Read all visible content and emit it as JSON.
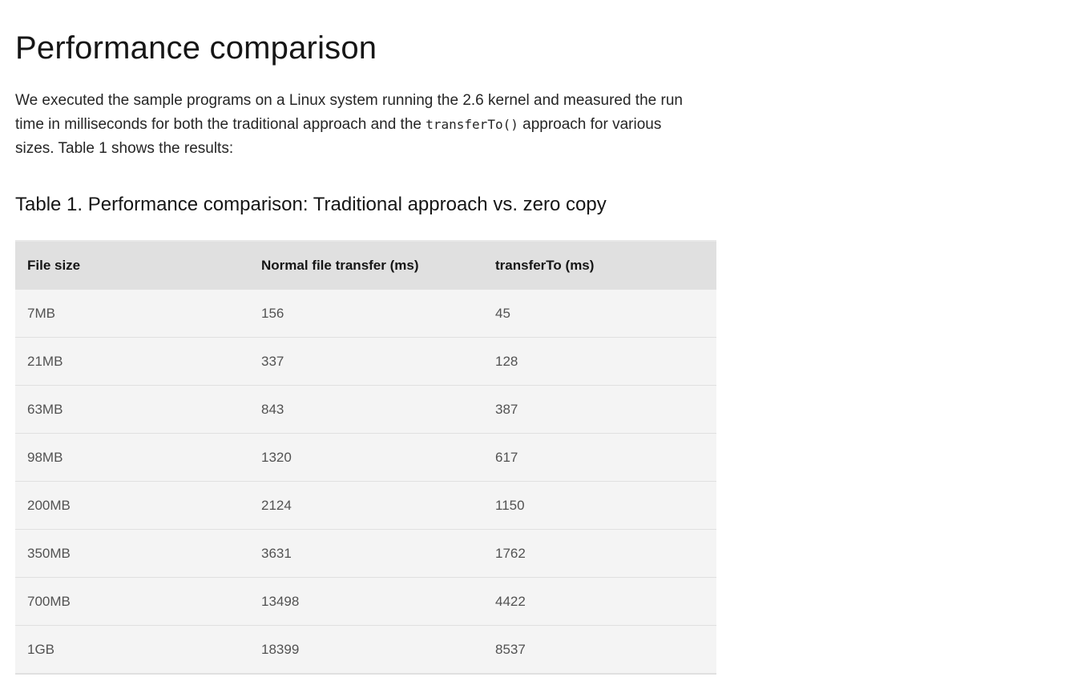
{
  "heading": "Performance comparison",
  "intro": {
    "before_code": "We executed the sample programs on a Linux system running the 2.6 kernel and measured the run time in milliseconds for both the traditional approach and the ",
    "code": "transferTo()",
    "after_code": " approach for various sizes. Table 1 shows the results:"
  },
  "table_caption": "Table 1. Performance comparison: Traditional approach vs. zero copy",
  "table": {
    "headers": [
      "File size",
      "Normal file transfer (ms)",
      "transferTo (ms)"
    ],
    "rows": [
      [
        "7MB",
        "156",
        "45"
      ],
      [
        "21MB",
        "337",
        "128"
      ],
      [
        "63MB",
        "843",
        "387"
      ],
      [
        "98MB",
        "1320",
        "617"
      ],
      [
        "200MB",
        "2124",
        "1150"
      ],
      [
        "350MB",
        "3631",
        "1762"
      ],
      [
        "700MB",
        "13498",
        "4422"
      ],
      [
        "1GB",
        "18399",
        "8537"
      ]
    ]
  }
}
